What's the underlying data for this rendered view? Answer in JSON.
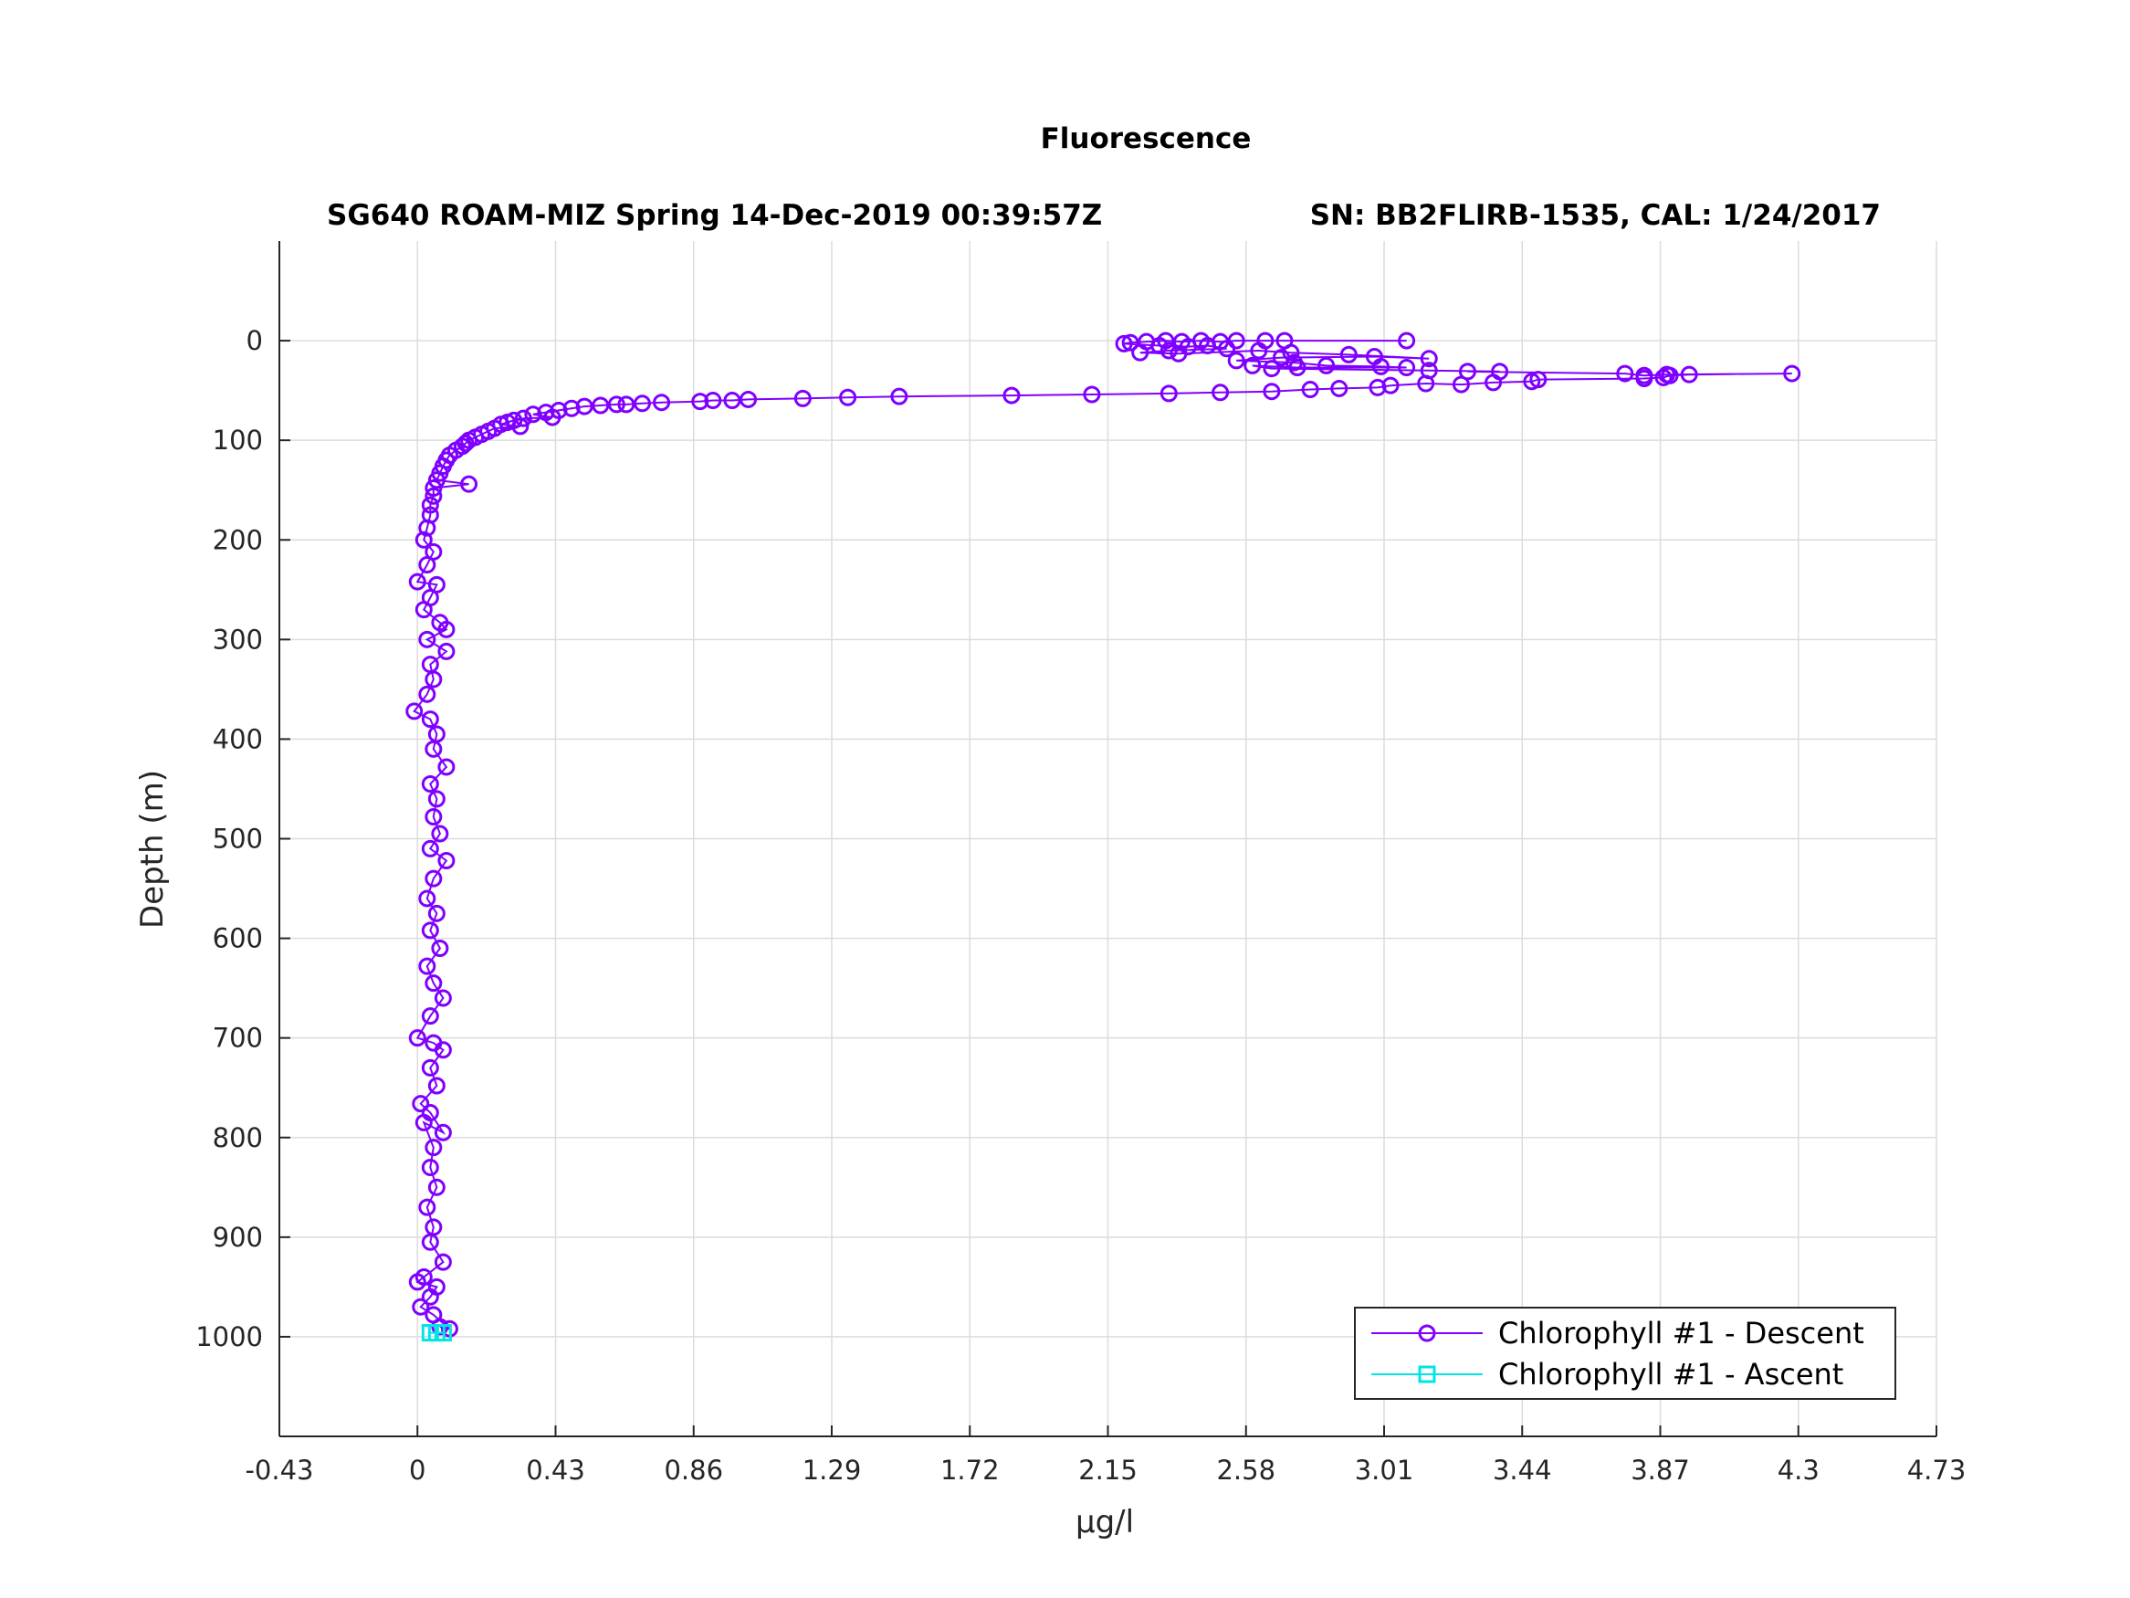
{
  "chart_data": {
    "type": "line",
    "title": "Fluorescence",
    "subtitle_left": "SG640 ROAM-MIZ Spring 14-Dec-2019 00:39:57Z",
    "subtitle_right": "SN: BB2FLIRB-1535, CAL: 1/24/2017",
    "xlabel": "μg/l",
    "ylabel": "Depth (m)",
    "xlim": [
      -0.43,
      4.73
    ],
    "ylim": [
      1100,
      -100
    ],
    "y_reversed": true,
    "x_ticks": [
      "-0.43",
      "0",
      "0.43",
      "0.86",
      "1.29",
      "1.72",
      "2.15",
      "2.58",
      "3.01",
      "3.44",
      "3.87",
      "4.3",
      "4.73"
    ],
    "y_ticks": [
      "0",
      "100",
      "200",
      "300",
      "400",
      "500",
      "600",
      "700",
      "800",
      "900",
      "1000"
    ],
    "grid": true,
    "legend_position": "bottom-right",
    "colors": {
      "descent": "#7f00ff",
      "ascent": "#00e5e5"
    },
    "series": [
      {
        "name": "Chlorophyll #1 - Descent",
        "marker": "circle",
        "points": [
          [
            3.08,
            0
          ],
          [
            2.7,
            0
          ],
          [
            2.64,
            0
          ],
          [
            2.55,
            0
          ],
          [
            2.5,
            1
          ],
          [
            2.44,
            0
          ],
          [
            2.38,
            1
          ],
          [
            2.33,
            0
          ],
          [
            2.27,
            1
          ],
          [
            2.22,
            2
          ],
          [
            2.2,
            3
          ],
          [
            2.31,
            5
          ],
          [
            2.4,
            6
          ],
          [
            2.46,
            5
          ],
          [
            2.52,
            8
          ],
          [
            2.34,
            10
          ],
          [
            2.25,
            12
          ],
          [
            2.37,
            13
          ],
          [
            2.62,
            10
          ],
          [
            2.72,
            12
          ],
          [
            2.9,
            14
          ],
          [
            3.15,
            18
          ],
          [
            2.98,
            16
          ],
          [
            2.69,
            17
          ],
          [
            2.55,
            20
          ],
          [
            2.73,
            22
          ],
          [
            2.83,
            25
          ],
          [
            3.0,
            26
          ],
          [
            3.08,
            27
          ],
          [
            2.74,
            27
          ],
          [
            2.6,
            25
          ],
          [
            2.66,
            28
          ],
          [
            3.15,
            30
          ],
          [
            3.37,
            31
          ],
          [
            3.27,
            31
          ],
          [
            3.76,
            33
          ],
          [
            3.82,
            35
          ],
          [
            3.89,
            34
          ],
          [
            4.28,
            33
          ],
          [
            3.96,
            34
          ],
          [
            3.9,
            35
          ],
          [
            3.88,
            37
          ],
          [
            3.82,
            38
          ],
          [
            3.49,
            39
          ],
          [
            3.47,
            41
          ],
          [
            3.35,
            42
          ],
          [
            3.25,
            44
          ],
          [
            3.14,
            43
          ],
          [
            3.03,
            45
          ],
          [
            2.99,
            47
          ],
          [
            2.87,
            48
          ],
          [
            2.78,
            49
          ],
          [
            2.66,
            51
          ],
          [
            2.5,
            52
          ],
          [
            2.34,
            53
          ],
          [
            2.1,
            54
          ],
          [
            1.85,
            55
          ],
          [
            1.5,
            56
          ],
          [
            1.34,
            57
          ],
          [
            1.2,
            58
          ],
          [
            1.03,
            59
          ],
          [
            0.98,
            60
          ],
          [
            0.92,
            60
          ],
          [
            0.88,
            61
          ],
          [
            0.76,
            62
          ],
          [
            0.7,
            63
          ],
          [
            0.65,
            64
          ],
          [
            0.62,
            64
          ],
          [
            0.57,
            65
          ],
          [
            0.52,
            66
          ],
          [
            0.48,
            68
          ],
          [
            0.44,
            70
          ],
          [
            0.4,
            72
          ],
          [
            0.36,
            74
          ],
          [
            0.42,
            77
          ],
          [
            0.33,
            78
          ],
          [
            0.3,
            80
          ],
          [
            0.28,
            82
          ],
          [
            0.26,
            84
          ],
          [
            0.32,
            86
          ],
          [
            0.24,
            88
          ],
          [
            0.22,
            91
          ],
          [
            0.2,
            94
          ],
          [
            0.18,
            97
          ],
          [
            0.16,
            100
          ],
          [
            0.15,
            103
          ],
          [
            0.14,
            106
          ],
          [
            0.12,
            110
          ],
          [
            0.1,
            115
          ],
          [
            0.09,
            120
          ],
          [
            0.08,
            126
          ],
          [
            0.07,
            133
          ],
          [
            0.06,
            140
          ],
          [
            0.16,
            144
          ],
          [
            0.05,
            148
          ],
          [
            0.05,
            156
          ],
          [
            0.04,
            165
          ],
          [
            0.04,
            175
          ],
          [
            0.03,
            188
          ],
          [
            0.02,
            200
          ],
          [
            0.05,
            212
          ],
          [
            0.03,
            225
          ],
          [
            0.0,
            242
          ],
          [
            0.06,
            245
          ],
          [
            0.04,
            258
          ],
          [
            0.02,
            270
          ],
          [
            0.07,
            283
          ],
          [
            0.09,
            290
          ],
          [
            0.03,
            300
          ],
          [
            0.09,
            312
          ],
          [
            0.04,
            325
          ],
          [
            0.05,
            340
          ],
          [
            0.03,
            355
          ],
          [
            -0.01,
            372
          ],
          [
            0.04,
            380
          ],
          [
            0.06,
            395
          ],
          [
            0.05,
            410
          ],
          [
            0.09,
            428
          ],
          [
            0.04,
            445
          ],
          [
            0.06,
            460
          ],
          [
            0.05,
            478
          ],
          [
            0.07,
            495
          ],
          [
            0.04,
            510
          ],
          [
            0.09,
            522
          ],
          [
            0.05,
            540
          ],
          [
            0.03,
            560
          ],
          [
            0.06,
            575
          ],
          [
            0.04,
            592
          ],
          [
            0.07,
            610
          ],
          [
            0.03,
            628
          ],
          [
            0.05,
            645
          ],
          [
            0.08,
            660
          ],
          [
            0.04,
            678
          ],
          [
            0.0,
            700
          ],
          [
            0.05,
            705
          ],
          [
            0.08,
            712
          ],
          [
            0.04,
            730
          ],
          [
            0.06,
            748
          ],
          [
            0.01,
            766
          ],
          [
            0.04,
            775
          ],
          [
            0.08,
            795
          ],
          [
            0.02,
            785
          ],
          [
            0.05,
            810
          ],
          [
            0.04,
            830
          ],
          [
            0.06,
            850
          ],
          [
            0.03,
            870
          ],
          [
            0.05,
            890
          ],
          [
            0.04,
            905
          ],
          [
            0.08,
            925
          ],
          [
            0.02,
            940
          ],
          [
            0.0,
            945
          ],
          [
            0.06,
            950
          ],
          [
            0.04,
            960
          ],
          [
            0.01,
            970
          ],
          [
            0.05,
            978
          ],
          [
            0.1,
            992
          ],
          [
            0.07,
            990
          ]
        ]
      },
      {
        "name": "Chlorophyll #1 - Ascent",
        "marker": "square",
        "points": [
          [
            0.04,
            996
          ],
          [
            0.06,
            996
          ],
          [
            0.08,
            996
          ]
        ]
      }
    ]
  }
}
